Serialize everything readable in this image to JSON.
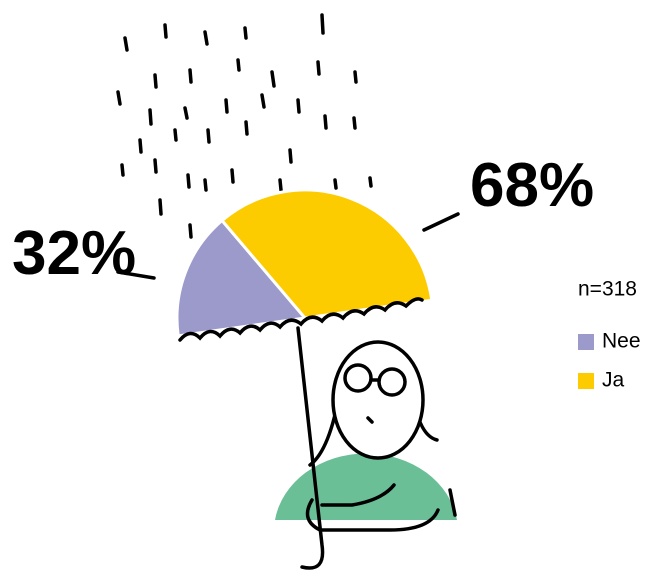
{
  "chart_data": {
    "type": "pie",
    "note": "n=318",
    "categories": [
      "Nee",
      "Ja"
    ],
    "values": [
      32,
      68
    ],
    "value_labels": [
      "32%",
      "68%"
    ],
    "colors": [
      "#9c99cb",
      "#fccb00"
    ],
    "legend": "right"
  }
}
